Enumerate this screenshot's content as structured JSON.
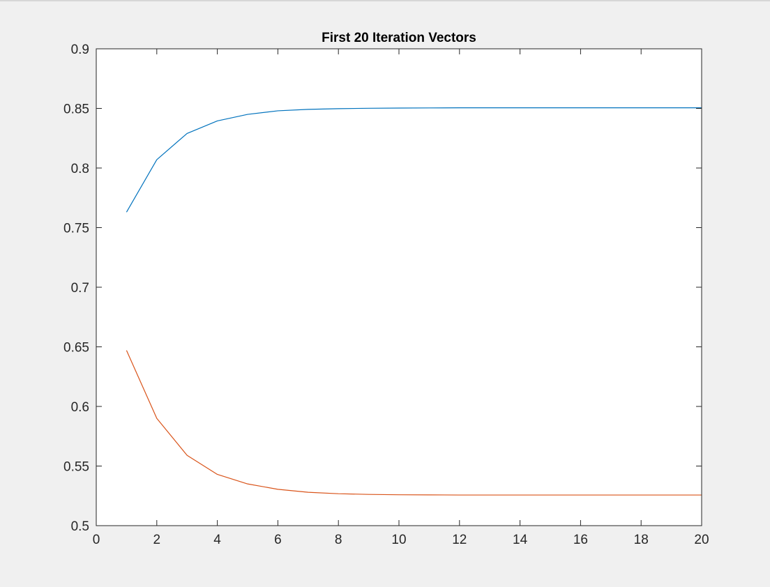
{
  "figure": {
    "background": "#f0f0f0",
    "axes_background": "#ffffff"
  },
  "chart_data": {
    "type": "line",
    "title": "First 20 Iteration Vectors",
    "xlabel": "",
    "ylabel": "",
    "xlim": [
      0,
      20
    ],
    "ylim": [
      0.5,
      0.9
    ],
    "xticks": [
      0,
      2,
      4,
      6,
      8,
      10,
      12,
      14,
      16,
      18,
      20
    ],
    "yticks": [
      0.5,
      0.55,
      0.6,
      0.65,
      0.7,
      0.75,
      0.8,
      0.85,
      0.9
    ],
    "xtick_labels": [
      "0",
      "2",
      "4",
      "6",
      "8",
      "10",
      "12",
      "14",
      "16",
      "18",
      "20"
    ],
    "ytick_labels": [
      "0.5",
      "0.55",
      "0.6",
      "0.65",
      "0.7",
      "0.75",
      "0.8",
      "0.85",
      "0.9"
    ],
    "grid": false,
    "x": [
      1,
      2,
      3,
      4,
      5,
      6,
      7,
      8,
      9,
      10,
      11,
      12,
      13,
      14,
      15,
      16,
      17,
      18,
      19,
      20
    ],
    "series": [
      {
        "color": "#0072bd",
        "values": [
          0.763,
          0.807,
          0.829,
          0.8395,
          0.845,
          0.848,
          0.8492,
          0.8498,
          0.8501,
          0.8503,
          0.8504,
          0.8505,
          0.8505,
          0.8505,
          0.8505,
          0.8505,
          0.8505,
          0.8505,
          0.8505,
          0.8505
        ]
      },
      {
        "color": "#d95319",
        "values": [
          0.647,
          0.59,
          0.559,
          0.543,
          0.535,
          0.5305,
          0.528,
          0.5268,
          0.5262,
          0.5259,
          0.5258,
          0.5257,
          0.5257,
          0.5257,
          0.5257,
          0.5257,
          0.5257,
          0.5257,
          0.5257,
          0.5257
        ]
      }
    ]
  }
}
